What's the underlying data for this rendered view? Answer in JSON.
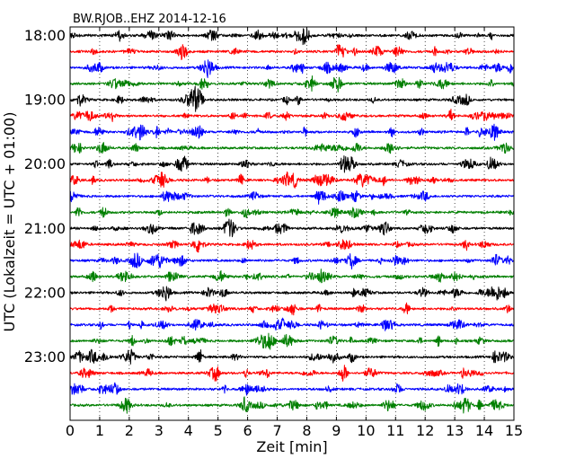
{
  "chart_data": {
    "type": "line",
    "title": "BW.RJOB..EHZ 2014-12-16",
    "xlabel": "Zeit  [min]",
    "ylabel": "UTC (Lokalzeit = UTC + 01:00)",
    "xlim": [
      0,
      15
    ],
    "x_ticks": [
      0,
      1,
      2,
      3,
      4,
      5,
      6,
      7,
      8,
      9,
      10,
      11,
      12,
      13,
      14,
      15
    ],
    "x_tick_labels": [
      "0",
      "1",
      "2",
      "3",
      "4",
      "5",
      "6",
      "7",
      "8",
      "9",
      "10",
      "11",
      "12",
      "13",
      "14",
      "15"
    ],
    "y_tick_labels": [
      "18:00",
      "19:00",
      "20:00",
      "21:00",
      "22:00",
      "23:00"
    ],
    "grid": {
      "x": "dotted-vertical",
      "y": "off"
    },
    "trace_colors": [
      "#000000",
      "#ff0000",
      "#0000ff",
      "#007f00"
    ],
    "traces": [
      {
        "start": "18:00",
        "color": "#000000"
      },
      {
        "start": "18:15",
        "color": "#ff0000"
      },
      {
        "start": "18:30",
        "color": "#0000ff"
      },
      {
        "start": "18:45",
        "color": "#007f00"
      },
      {
        "start": "19:00",
        "color": "#000000"
      },
      {
        "start": "19:15",
        "color": "#ff0000"
      },
      {
        "start": "19:30",
        "color": "#0000ff"
      },
      {
        "start": "19:45",
        "color": "#007f00"
      },
      {
        "start": "20:00",
        "color": "#000000"
      },
      {
        "start": "20:15",
        "color": "#ff0000"
      },
      {
        "start": "20:30",
        "color": "#0000ff"
      },
      {
        "start": "20:45",
        "color": "#007f00"
      },
      {
        "start": "21:00",
        "color": "#000000"
      },
      {
        "start": "21:15",
        "color": "#ff0000"
      },
      {
        "start": "21:30",
        "color": "#0000ff"
      },
      {
        "start": "21:45",
        "color": "#007f00"
      },
      {
        "start": "22:00",
        "color": "#000000"
      },
      {
        "start": "22:15",
        "color": "#ff0000"
      },
      {
        "start": "22:30",
        "color": "#0000ff"
      },
      {
        "start": "22:45",
        "color": "#007f00"
      },
      {
        "start": "23:00",
        "color": "#000000"
      },
      {
        "start": "23:15",
        "color": "#ff0000"
      },
      {
        "start": "23:30",
        "color": "#0000ff"
      },
      {
        "start": "23:45",
        "color": "#007f00"
      }
    ]
  }
}
